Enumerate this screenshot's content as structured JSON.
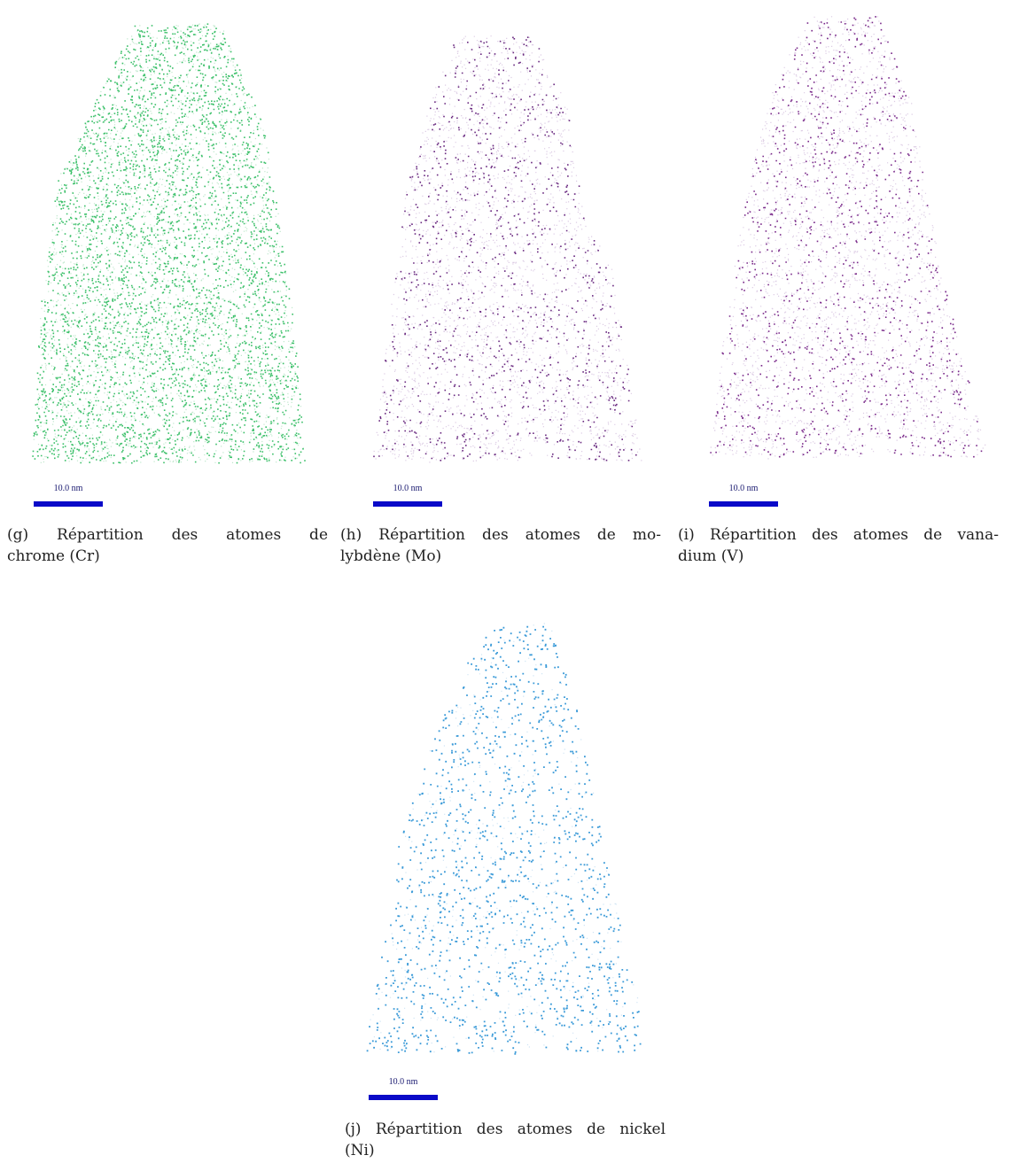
{
  "panels": [
    {
      "scale_label": "10.0 nm",
      "caption": {
        "label": "(g)",
        "lines": [
          "Répartition des atomes de",
          "chrome (Cr)"
        ]
      }
    },
    {
      "scale_label": "10.0 nm",
      "caption": {
        "label": "(h)",
        "lines": [
          "Répartition des atomes de mo-",
          "lybdène (Mo)"
        ]
      }
    },
    {
      "scale_label": "10.0 nm",
      "caption": {
        "label": "(i)",
        "lines": [
          "Répartition des atomes de vana-",
          "dium (V)"
        ]
      }
    },
    {
      "scale_label": "10.0 nm",
      "caption": {
        "label": "(j)",
        "lines": [
          "Répartition des atomes de nickel",
          "(Ni)"
        ]
      }
    }
  ]
}
